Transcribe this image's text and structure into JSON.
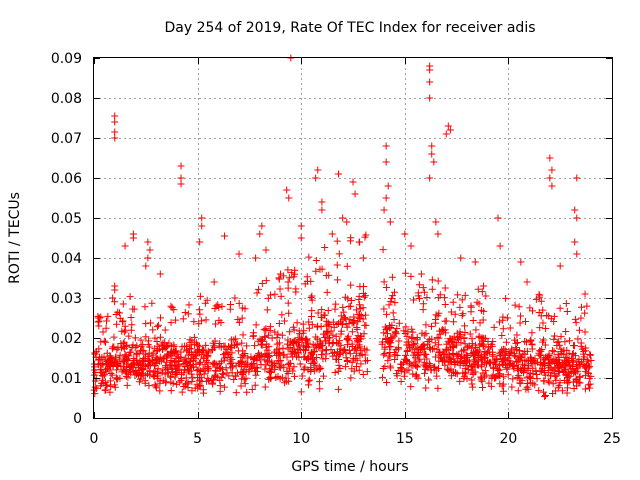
{
  "chart_data": {
    "type": "scatter",
    "title": "Day 254 of 2019, Rate Of TEC Index for receiver adis",
    "xlabel": "GPS time / hours",
    "ylabel": "ROTI / TECUs",
    "xlim": [
      0,
      25
    ],
    "ylim": [
      0,
      0.09
    ],
    "grid": true,
    "marker": "plus",
    "series_color": "#ff0000",
    "x_tick_labels": [
      "0",
      "5",
      "10",
      "15",
      "20",
      "25"
    ],
    "y_tick_labels": [
      "0",
      "0.01",
      "0.02",
      "0.03",
      "0.04",
      "0.05",
      "0.06",
      "0.07",
      "0.08",
      "0.09"
    ],
    "data_gap_hours": [
      13.2,
      13.9
    ],
    "typical_band": {
      "x": [
        0,
        1,
        2,
        3,
        4,
        5,
        6,
        7,
        8,
        9,
        10,
        11,
        12,
        13,
        14,
        15,
        16,
        17,
        18,
        19,
        20,
        21,
        22,
        23,
        24
      ],
      "low": [
        0.006,
        0.006,
        0.006,
        0.006,
        0.006,
        0.005,
        0.005,
        0.006,
        0.006,
        0.006,
        0.006,
        0.007,
        0.007,
        0.008,
        0.007,
        0.006,
        0.006,
        0.006,
        0.006,
        0.006,
        0.006,
        0.005,
        0.005,
        0.005,
        0.006
      ],
      "high": [
        0.02,
        0.021,
        0.022,
        0.022,
        0.02,
        0.022,
        0.021,
        0.022,
        0.024,
        0.025,
        0.028,
        0.03,
        0.032,
        0.033,
        0.03,
        0.026,
        0.025,
        0.024,
        0.024,
        0.022,
        0.022,
        0.022,
        0.022,
        0.021,
        0.02
      ]
    },
    "outliers": [
      [
        1.0,
        0.0755
      ],
      [
        1.0,
        0.074
      ],
      [
        1.0,
        0.0715
      ],
      [
        1.0,
        0.07
      ],
      [
        1.0,
        0.033
      ],
      [
        1.0,
        0.032
      ],
      [
        0.9,
        0.03
      ],
      [
        1.5,
        0.043
      ],
      [
        1.9,
        0.046
      ],
      [
        1.9,
        0.045
      ],
      [
        2.6,
        0.044
      ],
      [
        2.7,
        0.042
      ],
      [
        2.6,
        0.04
      ],
      [
        2.5,
        0.038
      ],
      [
        4.2,
        0.063
      ],
      [
        4.2,
        0.06
      ],
      [
        4.2,
        0.0585
      ],
      [
        5.2,
        0.05
      ],
      [
        5.2,
        0.048
      ],
      [
        5.1,
        0.044
      ],
      [
        6.3,
        0.0455
      ],
      [
        7.0,
        0.041
      ],
      [
        7.8,
        0.04
      ],
      [
        8.1,
        0.048
      ],
      [
        8.0,
        0.046
      ],
      [
        8.3,
        0.042
      ],
      [
        9.3,
        0.057
      ],
      [
        9.4,
        0.055
      ],
      [
        9.5,
        0.09
      ],
      [
        10.0,
        0.048
      ],
      [
        10.0,
        0.045
      ],
      [
        10.8,
        0.062
      ],
      [
        10.7,
        0.06
      ],
      [
        11.0,
        0.054
      ],
      [
        11.0,
        0.052
      ],
      [
        11.5,
        0.046
      ],
      [
        11.8,
        0.061
      ],
      [
        12.0,
        0.05
      ],
      [
        12.2,
        0.049
      ],
      [
        12.5,
        0.059
      ],
      [
        12.6,
        0.056
      ],
      [
        12.8,
        0.044
      ],
      [
        14.1,
        0.068
      ],
      [
        14.1,
        0.064
      ],
      [
        14.2,
        0.058
      ],
      [
        14.1,
        0.055
      ],
      [
        14.0,
        0.052
      ],
      [
        14.3,
        0.049
      ],
      [
        15.0,
        0.046
      ],
      [
        15.3,
        0.043
      ],
      [
        16.2,
        0.088
      ],
      [
        16.2,
        0.087
      ],
      [
        16.2,
        0.084
      ],
      [
        16.2,
        0.08
      ],
      [
        16.3,
        0.068
      ],
      [
        16.3,
        0.066
      ],
      [
        16.4,
        0.064
      ],
      [
        16.2,
        0.06
      ],
      [
        16.5,
        0.049
      ],
      [
        16.6,
        0.046
      ],
      [
        17.1,
        0.073
      ],
      [
        17.0,
        0.071
      ],
      [
        17.2,
        0.072
      ],
      [
        17.7,
        0.04
      ],
      [
        18.4,
        0.039
      ],
      [
        19.5,
        0.05
      ],
      [
        19.6,
        0.043
      ],
      [
        20.6,
        0.039
      ],
      [
        22.0,
        0.065
      ],
      [
        22.1,
        0.062
      ],
      [
        22.1,
        0.058
      ],
      [
        22.0,
        0.06
      ],
      [
        22.5,
        0.038
      ],
      [
        23.3,
        0.06
      ],
      [
        23.2,
        0.052
      ],
      [
        23.3,
        0.05
      ],
      [
        23.2,
        0.044
      ],
      [
        23.3,
        0.041
      ],
      [
        0.2,
        0.024
      ],
      [
        3.2,
        0.036
      ],
      [
        5.8,
        0.034
      ],
      [
        6.8,
        0.03
      ],
      [
        9.0,
        0.036
      ],
      [
        13.0,
        0.04
      ],
      [
        15.8,
        0.036
      ],
      [
        18.8,
        0.033
      ],
      [
        20.9,
        0.034
      ],
      [
        23.7,
        0.031
      ]
    ]
  }
}
